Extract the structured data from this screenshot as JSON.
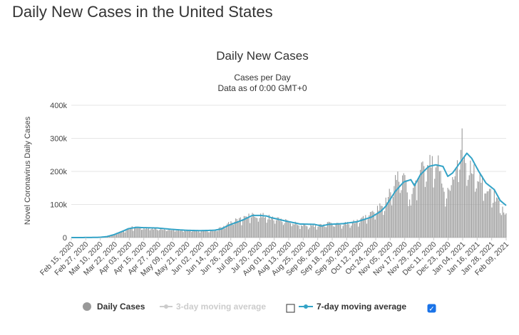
{
  "page": {
    "title": "Daily New Cases in the United States"
  },
  "chart_data": {
    "type": "bar",
    "title": "Daily New Cases",
    "subtitle": "Cases per Day",
    "subtitle2": "Data as of 0:00 GMT+0",
    "ylabel": "Novel Coronavirus Daily Cases",
    "xlabel": "",
    "ylim": [
      0,
      400000
    ],
    "yticks": [
      {
        "value": 0,
        "label": "0"
      },
      {
        "value": 100000,
        "label": "100k"
      },
      {
        "value": 200000,
        "label": "200k"
      },
      {
        "value": 300000,
        "label": "300k"
      },
      {
        "value": 400000,
        "label": "400k"
      }
    ],
    "x_start": "2020-02-15",
    "x_end": "2021-02-14",
    "xticks": [
      "Feb 15, 2020",
      "Feb 27, 2020",
      "Mar 10, 2020",
      "Mar 22, 2020",
      "Apr 03, 2020",
      "Apr 15, 2020",
      "Apr 27, 2020",
      "May 09, 2020",
      "May 21, 2020",
      "Jun 02, 2020",
      "Jun 14, 2020",
      "Jun 26, 2020",
      "Jul 08, 2020",
      "Jul 20, 2020",
      "Aug 01, 2020",
      "Aug 13, 2020",
      "Aug 25, 2020",
      "Sep 06, 2020",
      "Sep 18, 2020",
      "Sep 30, 2020",
      "Oct 12, 2020",
      "Oct 24, 2020",
      "Nov 05, 2020",
      "Nov 17, 2020",
      "Nov 29, 2020",
      "Dec 11, 2020",
      "Dec 23, 2020",
      "Jan 04, 2021",
      "Jan 16, 2021",
      "Jan 28, 2021",
      "Feb 09, 2021"
    ],
    "grid": true,
    "colors": {
      "bars": "#999999",
      "avg7": "#33a3c7",
      "avg3": "#cccccc",
      "grid": "#e6e6e6"
    },
    "series": [
      {
        "name": "Daily Cases",
        "type": "bar",
        "estimated_from": "visual",
        "points": [
          [
            "2020-02-15",
            0
          ],
          [
            "2020-03-01",
            20
          ],
          [
            "2020-03-10",
            300
          ],
          [
            "2020-03-15",
            1000
          ],
          [
            "2020-03-22",
            9000
          ],
          [
            "2020-03-29",
            20000
          ],
          [
            "2020-04-03",
            30000
          ],
          [
            "2020-04-10",
            33000
          ],
          [
            "2020-04-15",
            29000
          ],
          [
            "2020-04-27",
            27000
          ],
          [
            "2020-05-09",
            25000
          ],
          [
            "2020-05-21",
            22000
          ],
          [
            "2020-06-02",
            21000
          ],
          [
            "2020-06-14",
            22000
          ],
          [
            "2020-06-20",
            32000
          ],
          [
            "2020-06-26",
            45000
          ],
          [
            "2020-07-08",
            60000
          ],
          [
            "2020-07-16",
            72000
          ],
          [
            "2020-07-20",
            67000
          ],
          [
            "2020-07-25",
            70000
          ],
          [
            "2020-08-01",
            60000
          ],
          [
            "2020-08-13",
            51000
          ],
          [
            "2020-08-25",
            40000
          ],
          [
            "2020-09-06",
            36000
          ],
          [
            "2020-09-12",
            38000
          ],
          [
            "2020-09-18",
            44000
          ],
          [
            "2020-09-30",
            42000
          ],
          [
            "2020-10-12",
            50000
          ],
          [
            "2020-10-24",
            72000
          ],
          [
            "2020-11-05",
            110000
          ],
          [
            "2020-11-13",
            180000
          ],
          [
            "2020-11-20",
            190000
          ],
          [
            "2020-11-26",
            110000
          ],
          [
            "2020-11-29",
            150000
          ],
          [
            "2020-12-04",
            215000
          ],
          [
            "2020-12-11",
            225000
          ],
          [
            "2020-12-17",
            240000
          ],
          [
            "2020-12-23",
            200000
          ],
          [
            "2020-12-25",
            95000
          ],
          [
            "2020-12-30",
            200000
          ],
          [
            "2021-01-02",
            170000
          ],
          [
            "2021-01-08",
            300000
          ],
          [
            "2021-01-10",
            220000
          ],
          [
            "2021-01-16",
            210000
          ],
          [
            "2021-01-22",
            190000
          ],
          [
            "2021-01-28",
            150000
          ],
          [
            "2021-02-04",
            130000
          ],
          [
            "2021-02-09",
            95000
          ],
          [
            "2021-02-14",
            70000
          ]
        ]
      },
      {
        "name": "3-day moving average",
        "visible": false,
        "checked": false
      },
      {
        "name": "7-day moving average",
        "type": "line",
        "visible": true,
        "checked": true,
        "estimated_from": "visual",
        "points": [
          [
            "2020-02-15",
            0
          ],
          [
            "2020-03-01",
            200
          ],
          [
            "2020-03-10",
            800
          ],
          [
            "2020-03-16",
            3000
          ],
          [
            "2020-03-22",
            9000
          ],
          [
            "2020-03-29",
            19000
          ],
          [
            "2020-04-03",
            27000
          ],
          [
            "2020-04-10",
            31000
          ],
          [
            "2020-04-15",
            30000
          ],
          [
            "2020-04-27",
            29000
          ],
          [
            "2020-05-09",
            25000
          ],
          [
            "2020-05-21",
            22000
          ],
          [
            "2020-06-02",
            21000
          ],
          [
            "2020-06-14",
            22000
          ],
          [
            "2020-06-20",
            26000
          ],
          [
            "2020-06-26",
            37000
          ],
          [
            "2020-07-08",
            53000
          ],
          [
            "2020-07-16",
            67000
          ],
          [
            "2020-07-22",
            67000
          ],
          [
            "2020-07-28",
            65000
          ],
          [
            "2020-08-01",
            60000
          ],
          [
            "2020-08-07",
            55000
          ],
          [
            "2020-08-13",
            50000
          ],
          [
            "2020-08-25",
            41000
          ],
          [
            "2020-09-06",
            40000
          ],
          [
            "2020-09-12",
            35000
          ],
          [
            "2020-09-18",
            40000
          ],
          [
            "2020-09-30",
            42000
          ],
          [
            "2020-10-12",
            48000
          ],
          [
            "2020-10-24",
            62000
          ],
          [
            "2020-11-01",
            80000
          ],
          [
            "2020-11-05",
            95000
          ],
          [
            "2020-11-13",
            140000
          ],
          [
            "2020-11-20",
            168000
          ],
          [
            "2020-11-26",
            175000
          ],
          [
            "2020-11-29",
            157000
          ],
          [
            "2020-12-04",
            190000
          ],
          [
            "2020-12-11",
            215000
          ],
          [
            "2020-12-17",
            220000
          ],
          [
            "2020-12-23",
            215000
          ],
          [
            "2020-12-27",
            185000
          ],
          [
            "2020-12-31",
            195000
          ],
          [
            "2021-01-04",
            215000
          ],
          [
            "2021-01-08",
            235000
          ],
          [
            "2021-01-12",
            255000
          ],
          [
            "2021-01-16",
            240000
          ],
          [
            "2021-01-22",
            200000
          ],
          [
            "2021-01-28",
            165000
          ],
          [
            "2021-02-04",
            145000
          ],
          [
            "2021-02-09",
            112000
          ],
          [
            "2021-02-14",
            97000
          ]
        ]
      }
    ]
  },
  "legend": {
    "daily_cases": "Daily Cases",
    "avg3": "3-day moving average",
    "avg7": "7-day moving average",
    "checkmark": "✓"
  }
}
